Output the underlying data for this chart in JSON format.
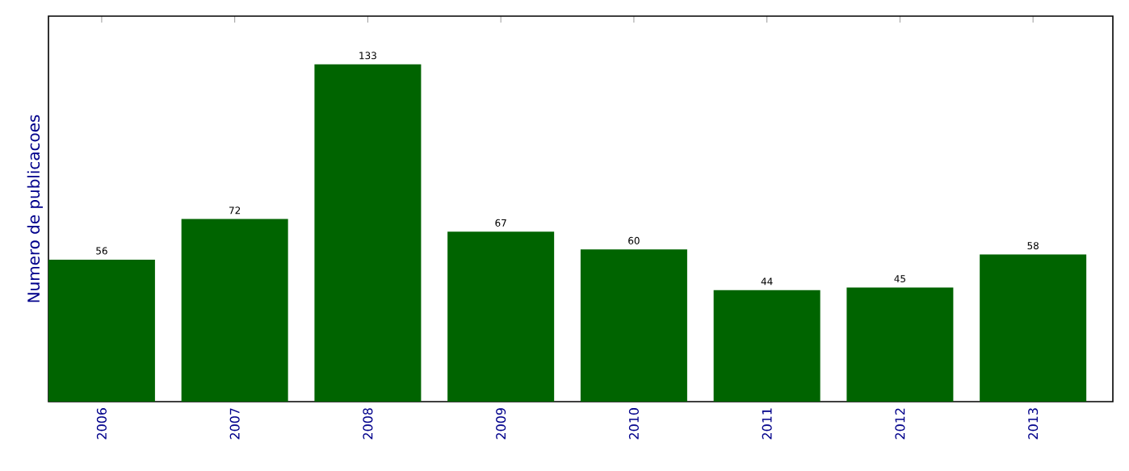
{
  "chart_data": {
    "type": "bar",
    "ylabel": "Numero de publicacoes",
    "categories": [
      "2006",
      "2007",
      "2008",
      "2009",
      "2010",
      "2011",
      "2012",
      "2013"
    ],
    "values": [
      56,
      72,
      133,
      67,
      60,
      44,
      45,
      58
    ],
    "color": "#006400",
    "ylim": [
      0,
      152
    ],
    "data_labels": true,
    "tick_labels": "x",
    "grid": false
  }
}
